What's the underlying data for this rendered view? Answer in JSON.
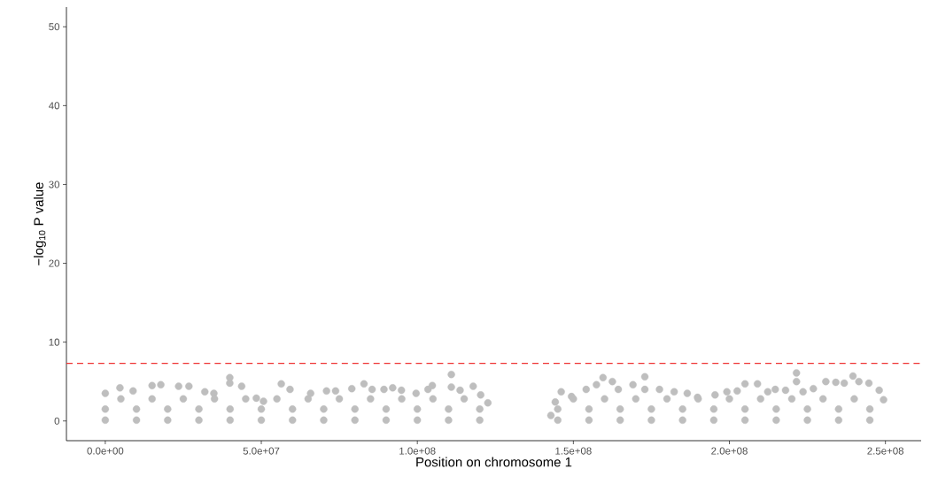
{
  "chart_data": {
    "type": "scatter",
    "xlabel": "Position on chromosome 1",
    "ylabel": "−log$_{10}$ P value",
    "xlim": [
      -12450000,
      261450000
    ],
    "ylim": [
      -2.5,
      52.5
    ],
    "xticks": [
      {
        "value": 0,
        "label": "0.0e+00"
      },
      {
        "value": 50000000,
        "label": "5.0e+07"
      },
      {
        "value": 100000000,
        "label": "1.0e+08"
      },
      {
        "value": 150000000,
        "label": "1.5e+08"
      },
      {
        "value": 200000000,
        "label": "2.0e+08"
      },
      {
        "value": 250000000,
        "label": "2.5e+08"
      }
    ],
    "yticks": [
      0,
      10,
      20,
      30,
      40,
      50
    ],
    "grid": false,
    "marker": "circle",
    "ref_lines": [
      {
        "axis": "y",
        "value": 7.3,
        "color": "#ee3333",
        "line_style": "dashed"
      }
    ],
    "series": [
      {
        "color": "#bebebe",
        "x": [
          0,
          4700000,
          8900000,
          15000000,
          17800000,
          23500000,
          26800000,
          31900000,
          34800000,
          39900000,
          39900000,
          43700000,
          48400000,
          50700000,
          56400000,
          59200000,
          65800000,
          70900000,
          73800000,
          79000000,
          82900000,
          85500000,
          89300000,
          92100000,
          94900000,
          99600000,
          103400000,
          104800000,
          110900000,
          110900000,
          113700000,
          117900000,
          120300000,
          122600000,
          142800000,
          144200000,
          146100000,
          149400000,
          154100000,
          157400000,
          159500000,
          162500000,
          164400000,
          169100000,
          172900000,
          172900000,
          177600000,
          182300000,
          186500000,
          189800000,
          195400000,
          199200000,
          202500000,
          205000000,
          209000000,
          212300000,
          214700000,
          218000000,
          221500000,
          221500000,
          223600000,
          226900000,
          230900000,
          234100000,
          236800000,
          239600000,
          241500000,
          244700000,
          248000000,
          249400000,
          0,
          10000000,
          20000000,
          30000000,
          40000000,
          50000000,
          60000000,
          70000000,
          80000000,
          90000000,
          100000000,
          110000000,
          120000000,
          145000000,
          155000000,
          165000000,
          175000000,
          185000000,
          195000000,
          205000000,
          215000000,
          225000000,
          235000000,
          245000000,
          0,
          10000000,
          20000000,
          30000000,
          40000000,
          50000000,
          60000000,
          70000000,
          80000000,
          90000000,
          100000000,
          110000000,
          120000000,
          145000000,
          155000000,
          165000000,
          175000000,
          185000000,
          195000000,
          205000000,
          215000000,
          225000000,
          235000000,
          245000000,
          5000000,
          15000000,
          25000000,
          35000000,
          45000000,
          55000000,
          65000000,
          75000000,
          85000000,
          95000000,
          105000000,
          115000000,
          150000000,
          160000000,
          170000000,
          180000000,
          190000000,
          200000000,
          210000000,
          220000000,
          230000000,
          240000000
        ],
        "values": [
          3.5,
          4.2,
          3.8,
          4.5,
          4.6,
          4.4,
          4.4,
          3.7,
          3.5,
          5.5,
          4.8,
          4.4,
          2.9,
          2.5,
          4.7,
          4.0,
          3.5,
          3.8,
          3.8,
          4.1,
          4.7,
          4.0,
          4.0,
          4.2,
          3.9,
          3.5,
          4.0,
          4.5,
          5.9,
          4.3,
          3.9,
          4.4,
          3.3,
          2.3,
          0.7,
          2.4,
          3.7,
          3.1,
          4.0,
          4.6,
          5.5,
          5.0,
          4.0,
          4.6,
          5.6,
          4.0,
          4.0,
          3.7,
          3.5,
          3.0,
          3.3,
          3.7,
          3.8,
          4.7,
          4.7,
          3.7,
          4.0,
          3.9,
          6.1,
          5.0,
          3.7,
          4.1,
          5.0,
          4.9,
          4.8,
          5.7,
          5.0,
          4.8,
          3.9,
          2.7,
          0.1,
          0.1,
          0.1,
          0.1,
          0.1,
          0.1,
          0.1,
          0.1,
          0.1,
          0.1,
          0.1,
          0.1,
          0.1,
          0.1,
          0.1,
          0.1,
          0.1,
          0.1,
          0.1,
          0.1,
          0.1,
          0.1,
          0.1,
          0.1,
          1.5,
          1.5,
          1.5,
          1.5,
          1.5,
          1.5,
          1.5,
          1.5,
          1.5,
          1.5,
          1.5,
          1.5,
          1.5,
          1.5,
          1.5,
          1.5,
          1.5,
          1.5,
          1.5,
          1.5,
          1.5,
          1.5,
          1.5,
          1.5,
          2.8,
          2.8,
          2.8,
          2.8,
          2.8,
          2.8,
          2.8,
          2.8,
          2.8,
          2.8,
          2.8,
          2.8,
          2.8,
          2.8,
          2.8,
          2.8,
          2.8,
          2.8,
          2.8,
          2.8,
          2.8,
          2.8
        ]
      }
    ]
  }
}
